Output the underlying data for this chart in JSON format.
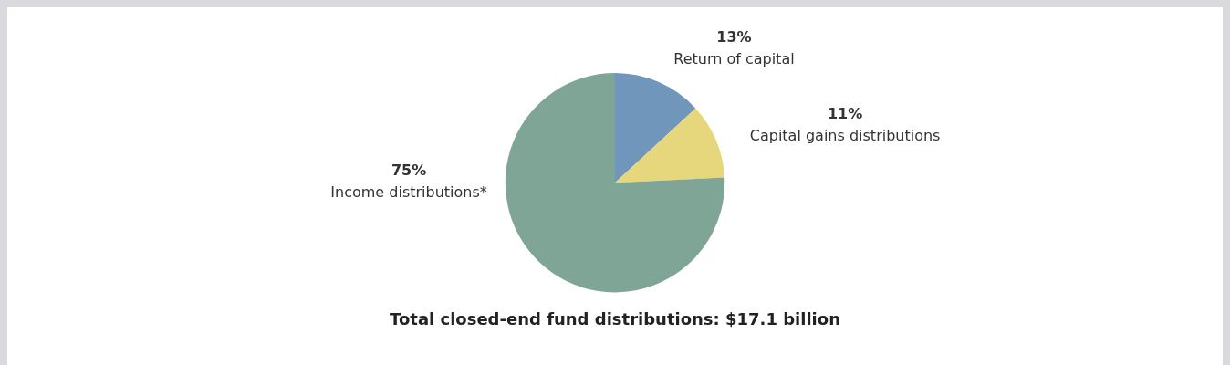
{
  "chart_data": {
    "type": "pie",
    "title": "Total closed-end fund distributions: $17.1 billion",
    "categories": [
      "Return of capital",
      "Capital gains distributions",
      "Income distributions*"
    ],
    "values": [
      13,
      11,
      75
    ],
    "value_labels": [
      "13%",
      "11%",
      "75%"
    ],
    "colors": [
      "#7096bb",
      "#e6d77c",
      "#7fa596"
    ],
    "legend": false
  }
}
